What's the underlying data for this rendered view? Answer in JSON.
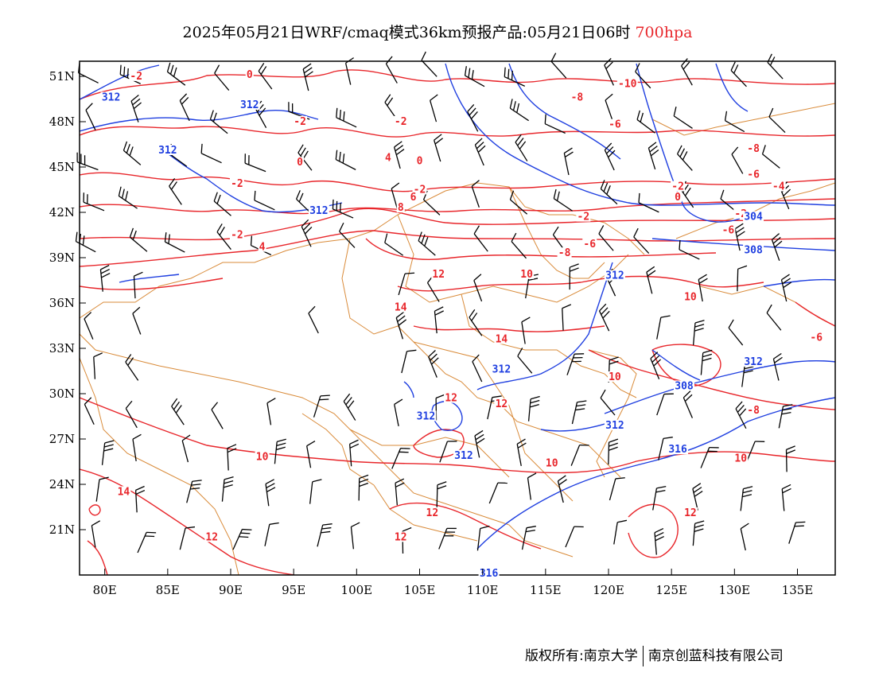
{
  "title": {
    "main": "2025年05月21日WRF/cmaq模式36km预报产品:05月21日06时",
    "level": "700hpa"
  },
  "colors": {
    "temperature": "#e8262b",
    "height": "#1f3fe0",
    "boundary": "#d98b3a",
    "wind": "#000000",
    "level_text": "#e8262b"
  },
  "map": {
    "lon_range": [
      78,
      138
    ],
    "lat_range": [
      18,
      52
    ],
    "x_ticks": [
      "80E",
      "85E",
      "90E",
      "95E",
      "100E",
      "105E",
      "110E",
      "115E",
      "120E",
      "125E",
      "130E",
      "135E"
    ],
    "y_ticks": [
      "51N",
      "48N",
      "45N",
      "42N",
      "39N",
      "36N",
      "33N",
      "30N",
      "27N",
      "24N",
      "21N"
    ]
  },
  "temperature_labels": [
    {
      "t": "-2",
      "lon": 82.5,
      "lat": 50.9
    },
    {
      "t": "0",
      "lon": 91.5,
      "lat": 51.0
    },
    {
      "t": "-10",
      "lon": 121.5,
      "lat": 50.4
    },
    {
      "t": "-8",
      "lon": 117.5,
      "lat": 49.5
    },
    {
      "t": "-2",
      "lon": 95.5,
      "lat": 47.9
    },
    {
      "t": "-2",
      "lon": 103.5,
      "lat": 47.9
    },
    {
      "t": "-6",
      "lon": 120.5,
      "lat": 47.7
    },
    {
      "t": "4",
      "lon": 102.5,
      "lat": 45.5
    },
    {
      "t": "-8",
      "lon": 131.5,
      "lat": 46.1
    },
    {
      "t": "0",
      "lon": 95.5,
      "lat": 45.2
    },
    {
      "t": "0",
      "lon": 105.0,
      "lat": 45.3
    },
    {
      "t": "-6",
      "lon": 131.5,
      "lat": 44.4
    },
    {
      "t": "-4",
      "lon": 133.5,
      "lat": 43.6
    },
    {
      "t": "-2",
      "lon": 90.5,
      "lat": 43.8
    },
    {
      "t": "-2",
      "lon": 105.0,
      "lat": 43.4
    },
    {
      "t": "-2",
      "lon": 125.5,
      "lat": 43.6
    },
    {
      "t": "0",
      "lon": 125.5,
      "lat": 42.9
    },
    {
      "t": "6",
      "lon": 104.5,
      "lat": 42.9
    },
    {
      "t": "8",
      "lon": 103.5,
      "lat": 42.2
    },
    {
      "t": "-2",
      "lon": 118.0,
      "lat": 41.6
    },
    {
      "t": "-2",
      "lon": 130.5,
      "lat": 41.8
    },
    {
      "t": "-6",
      "lon": 118.5,
      "lat": 39.8
    },
    {
      "t": "-8",
      "lon": 116.5,
      "lat": 39.2
    },
    {
      "t": "-6",
      "lon": 129.5,
      "lat": 40.7
    },
    {
      "t": "-2",
      "lon": 90.5,
      "lat": 40.4
    },
    {
      "t": "4",
      "lon": 92.5,
      "lat": 39.6
    },
    {
      "t": "12",
      "lon": 106.5,
      "lat": 37.8
    },
    {
      "t": "10",
      "lon": 113.5,
      "lat": 37.8
    },
    {
      "t": "10",
      "lon": 126.5,
      "lat": 36.3
    },
    {
      "t": "14",
      "lon": 103.5,
      "lat": 35.6
    },
    {
      "t": "14",
      "lon": 111.5,
      "lat": 33.5
    },
    {
      "t": "10",
      "lon": 120.5,
      "lat": 31.0
    },
    {
      "t": "12",
      "lon": 107.5,
      "lat": 29.6
    },
    {
      "t": "12",
      "lon": 111.5,
      "lat": 29.2
    },
    {
      "t": "-8",
      "lon": 131.5,
      "lat": 28.8
    },
    {
      "t": "10",
      "lon": 92.5,
      "lat": 25.7
    },
    {
      "t": "10",
      "lon": 115.5,
      "lat": 25.3
    },
    {
      "t": "10",
      "lon": 130.5,
      "lat": 25.6
    },
    {
      "t": "14",
      "lon": 81.5,
      "lat": 23.4
    },
    {
      "t": "12",
      "lon": 106.0,
      "lat": 22.0
    },
    {
      "t": "12",
      "lon": 126.5,
      "lat": 22.0
    },
    {
      "t": "12",
      "lon": 88.5,
      "lat": 20.4
    },
    {
      "t": "12",
      "lon": 103.5,
      "lat": 20.4
    },
    {
      "t": "-6",
      "lon": 136.5,
      "lat": 33.6
    }
  ],
  "height_labels": [
    {
      "t": "312",
      "lon": 80.5,
      "lat": 49.5
    },
    {
      "t": "312",
      "lon": 91.5,
      "lat": 49.0
    },
    {
      "t": "312",
      "lon": 85.0,
      "lat": 46.0
    },
    {
      "t": "312",
      "lon": 97.0,
      "lat": 42.0
    },
    {
      "t": "304",
      "lon": 131.5,
      "lat": 41.6
    },
    {
      "t": "308",
      "lon": 131.5,
      "lat": 39.4
    },
    {
      "t": "312",
      "lon": 120.5,
      "lat": 37.7
    },
    {
      "t": "312",
      "lon": 111.5,
      "lat": 31.5
    },
    {
      "t": "308",
      "lon": 126.0,
      "lat": 30.4
    },
    {
      "t": "312",
      "lon": 131.5,
      "lat": 32.0
    },
    {
      "t": "312",
      "lon": 105.5,
      "lat": 28.4
    },
    {
      "t": "312",
      "lon": 120.5,
      "lat": 27.8
    },
    {
      "t": "312",
      "lon": 108.5,
      "lat": 25.8
    },
    {
      "t": "316",
      "lon": 125.5,
      "lat": 26.2
    },
    {
      "t": "316",
      "lon": 110.5,
      "lat": 18.0
    }
  ]
}
